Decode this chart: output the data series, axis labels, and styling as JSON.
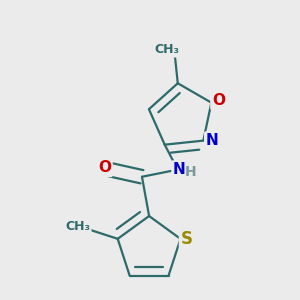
{
  "bg_color": "#ebebeb",
  "bond_color": "#2d6b6b",
  "bond_width": 1.6,
  "atom_colors": {
    "S": "#9a8a00",
    "O": "#cc0000",
    "N": "#0000cc",
    "C": "#2d6b6b",
    "H": "#7a9a9a"
  },
  "font_size_atom": 11,
  "font_size_methyl": 9.5
}
